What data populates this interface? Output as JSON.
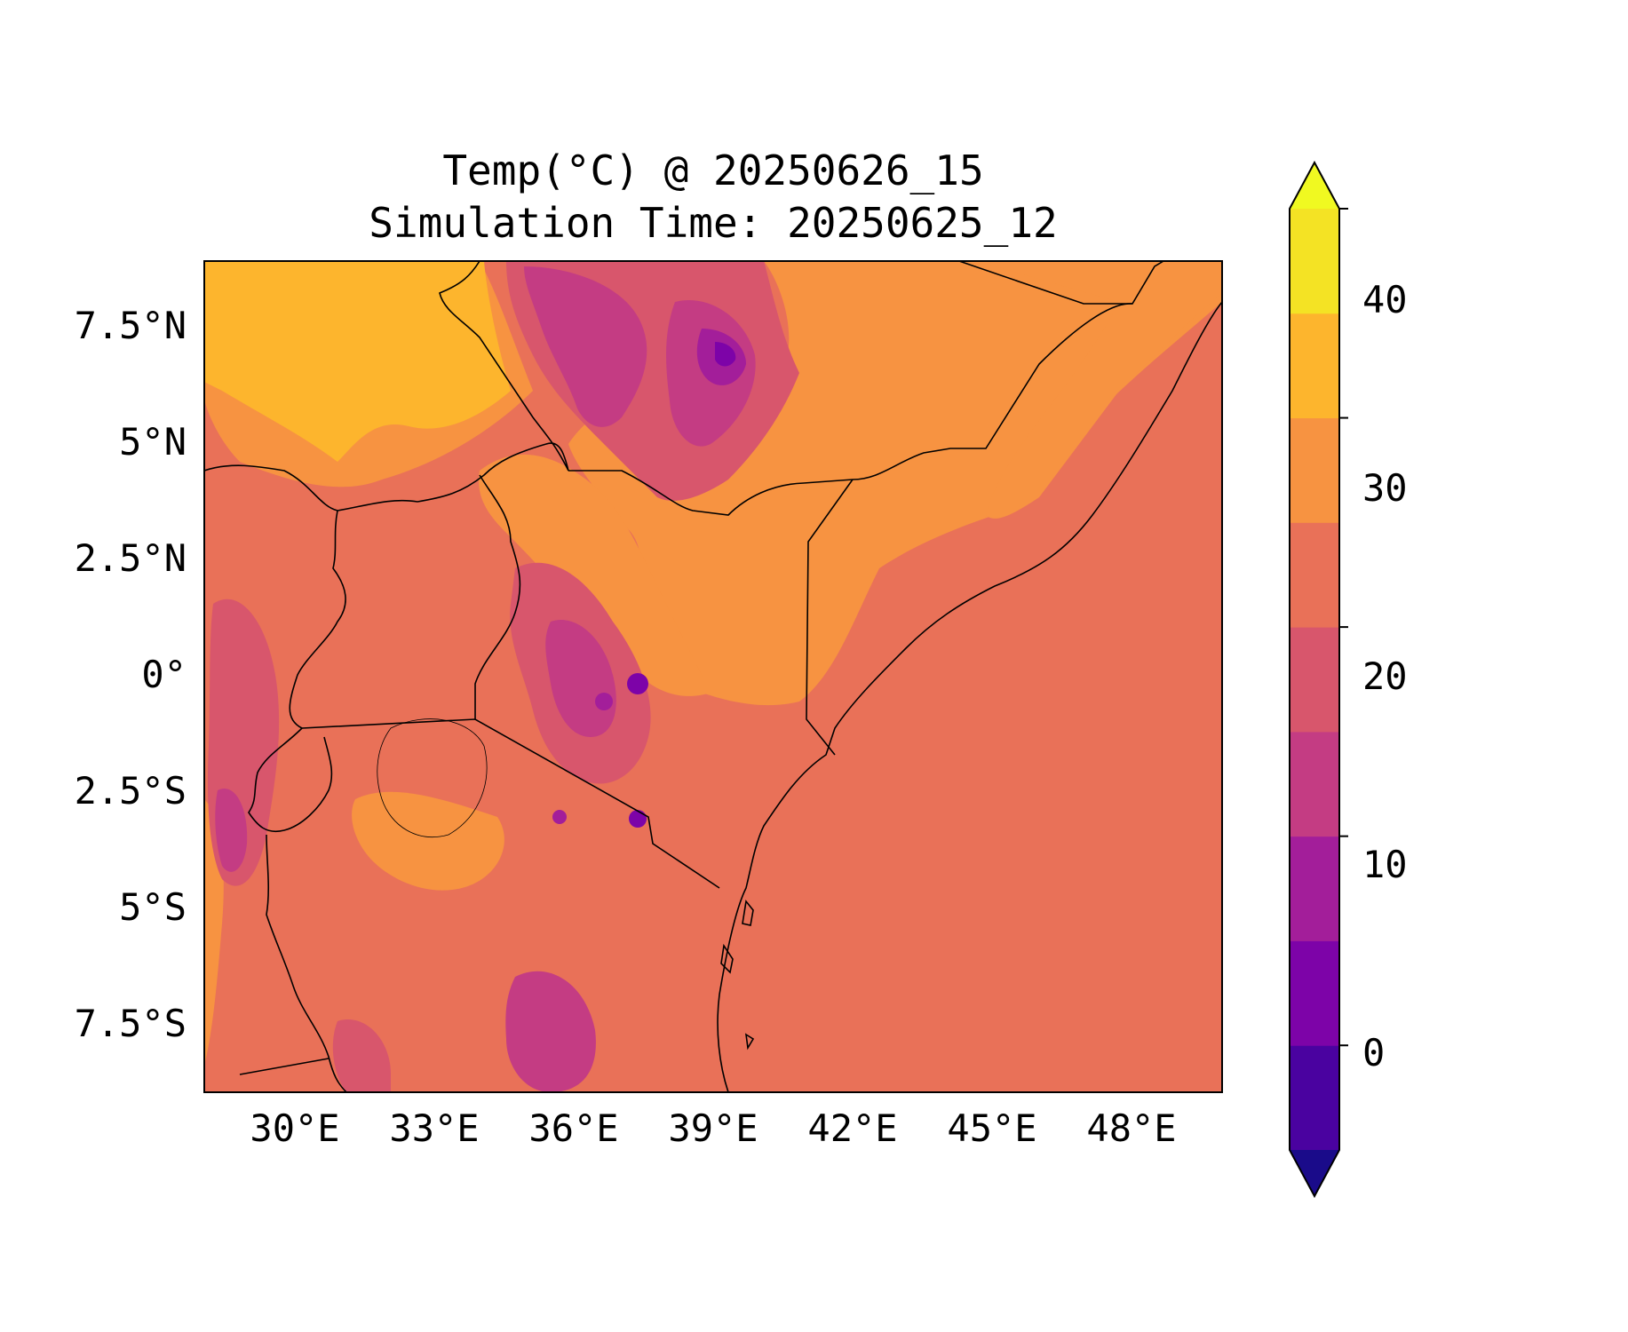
{
  "title": {
    "line1": "Temp(°C) @ 20250626_15",
    "line2": "Simulation Time: 20250625_12"
  },
  "map": {
    "region": "East Africa",
    "lon_range": [
      27.5,
      49.5
    ],
    "lat_range": [
      -9,
      9
    ],
    "x_ticks": [
      "30°E",
      "33°E",
      "36°E",
      "39°E",
      "42°E",
      "45°E",
      "48°E"
    ],
    "y_ticks": [
      "7.5°N",
      "5°N",
      "2.5°N",
      "0°",
      "2.5°S",
      "5°S",
      "7.5°S"
    ],
    "colors": {
      "lt0": "#1a0b8a",
      "0_5": "#4a02a0",
      "5_10": "#7d03a8",
      "10_15": "#a31e9a",
      "15_20": "#c43c83",
      "20_25": "#d8566c",
      "25_30": "#e97158",
      "30_35": "#f79341",
      "35_40": "#fdb52d",
      "40_45": "#f4e324",
      "gt45": "#f0f921"
    }
  },
  "colorbar": {
    "ticks": [
      "0",
      "10",
      "20",
      "30",
      "40"
    ],
    "levels": [
      -5,
      0,
      5,
      10,
      15,
      20,
      25,
      30,
      35,
      40,
      45
    ],
    "extend": "both",
    "colors": [
      "#1a0b8a",
      "#4a02a0",
      "#7d03a8",
      "#a31e9a",
      "#c43c83",
      "#d8566c",
      "#e97158",
      "#f79341",
      "#fdb52d",
      "#f4e324",
      "#f0f921"
    ]
  }
}
